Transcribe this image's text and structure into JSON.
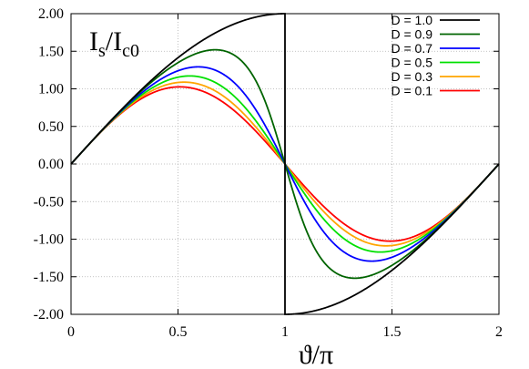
{
  "chart_data": {
    "type": "line",
    "title": "",
    "panel_label": {
      "main": "I",
      "sub1": "s",
      "slash": "/I",
      "sub2": "c0"
    },
    "xlabel": "ϑ/π",
    "ylabel": "",
    "xlim": [
      0,
      2
    ],
    "ylim": [
      -2.0,
      2.0
    ],
    "x_ticks": [
      "0",
      "0.5",
      "1",
      "1.5",
      "2"
    ],
    "x_tick_values": [
      0,
      0.5,
      1,
      1.5,
      2
    ],
    "y_ticks": [
      "2.00",
      "1.50",
      "1.00",
      "0.50",
      "0.00",
      "-0.50",
      "-1.00",
      "-1.50",
      "-2.00"
    ],
    "y_tick_values": [
      2.0,
      1.5,
      1.0,
      0.5,
      0.0,
      -0.5,
      -1.0,
      -1.5,
      -2.0
    ],
    "grid": true,
    "legend_position": "top-right",
    "series": [
      {
        "name": "D = 1.0",
        "color": "#000000",
        "D": 1.0
      },
      {
        "name": "D = 0.9",
        "color": "#006400",
        "D": 0.9
      },
      {
        "name": "D = 0.7",
        "color": "#0000ff",
        "D": 0.7
      },
      {
        "name": "D = 0.5",
        "color": "#00e000",
        "D": 0.5
      },
      {
        "name": "D = 0.3",
        "color": "#ffa500",
        "D": 0.3
      },
      {
        "name": "D = 0.1",
        "color": "#ff0000",
        "D": 0.1
      }
    ]
  }
}
